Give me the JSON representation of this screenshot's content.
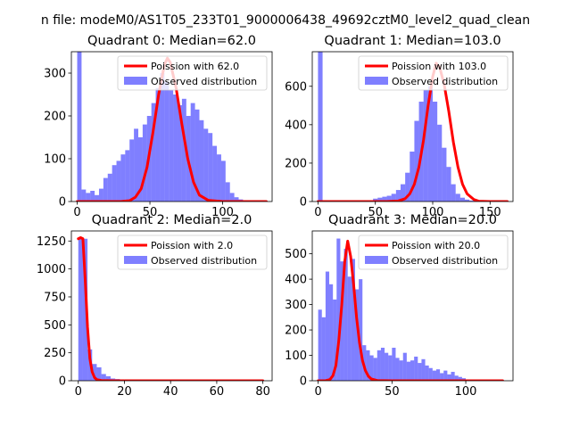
{
  "figure": {
    "suptitle": "n file: modeM0/AS1T05_233T01_9000006438_49692cztM0_level2_quad_clean"
  },
  "colors": {
    "histogram": "#0000ff",
    "poisson": "#ff0000",
    "axis": "#000000"
  },
  "chart_data": [
    {
      "type": "bar+line",
      "title": "Quadrant 0: Median=62.0",
      "xlim": [
        -4,
        134
      ],
      "ylim": [
        0,
        350
      ],
      "xticks": [
        0,
        50,
        100
      ],
      "yticks": [
        0,
        100,
        200,
        300
      ],
      "legend": {
        "position": "top-right",
        "line_label": "Poission with 62.0",
        "hist_label": "Observed distribution"
      },
      "histogram": {
        "bin_start": 0,
        "bin_width": 3,
        "counts": [
          350,
          28,
          20,
          25,
          15,
          30,
          55,
          65,
          85,
          95,
          110,
          120,
          145,
          170,
          150,
          180,
          200,
          230,
          265,
          300,
          280,
          260,
          250,
          225,
          240,
          200,
          230,
          215,
          190,
          170,
          160,
          130,
          110,
          95,
          45,
          20,
          10,
          5,
          3,
          0,
          0,
          0,
          0
        ]
      },
      "poisson": {
        "x": [
          0,
          20,
          30,
          36,
          40,
          44,
          48,
          52,
          56,
          60,
          62,
          64,
          68,
          72,
          76,
          80,
          84,
          90,
          100,
          110,
          120,
          130
        ],
        "y": [
          0,
          0,
          0,
          2,
          10,
          30,
          80,
          160,
          250,
          320,
          335,
          325,
          265,
          180,
          100,
          45,
          15,
          3,
          0,
          0,
          0,
          0
        ]
      }
    },
    {
      "type": "bar+line",
      "title": "Quadrant 1: Median=103.0",
      "xlim": [
        -5,
        170
      ],
      "ylim": [
        0,
        780
      ],
      "xticks": [
        0,
        50,
        100,
        150
      ],
      "yticks": [
        0,
        200,
        400,
        600
      ],
      "legend": {
        "position": "top-right",
        "line_label": "Poission with 103.0",
        "hist_label": "Observed distribution"
      },
      "histogram": {
        "bin_start": 0,
        "bin_width": 4,
        "counts": [
          780,
          0,
          0,
          0,
          0,
          0,
          0,
          0,
          0,
          0,
          0,
          0,
          15,
          20,
          25,
          30,
          40,
          60,
          90,
          150,
          260,
          420,
          520,
          580,
          600,
          520,
          400,
          280,
          180,
          90,
          40,
          20,
          10,
          5,
          3,
          2,
          0,
          0,
          0,
          0,
          0
        ]
      },
      "poisson": {
        "x": [
          0,
          40,
          60,
          70,
          76,
          80,
          84,
          88,
          92,
          96,
          100,
          103,
          106,
          110,
          114,
          118,
          122,
          126,
          130,
          136,
          140,
          150,
          160,
          165
        ],
        "y": [
          0,
          0,
          0,
          3,
          15,
          40,
          90,
          180,
          320,
          500,
          650,
          720,
          700,
          610,
          470,
          310,
          180,
          90,
          40,
          10,
          2,
          0,
          0,
          0
        ]
      }
    },
    {
      "type": "bar+line",
      "title": "Quadrant 2: Median=2.0",
      "xlim": [
        -3,
        84
      ],
      "ylim": [
        0,
        1340
      ],
      "xticks": [
        0,
        20,
        40,
        60,
        80
      ],
      "yticks": [
        0,
        250,
        500,
        750,
        1000,
        1250
      ],
      "legend": {
        "position": "top-right",
        "line_label": "Poission with 2.0",
        "hist_label": "Observed distribution"
      },
      "histogram": {
        "bin_start": 0,
        "bin_width": 2,
        "counts": [
          1280,
          1270,
          280,
          150,
          120,
          60,
          40,
          20,
          15,
          10,
          12,
          8,
          5,
          4,
          3,
          0,
          0,
          0,
          0,
          0,
          0,
          0,
          0,
          0,
          0,
          0,
          0,
          0,
          0,
          0,
          0,
          0,
          0,
          0,
          0,
          0,
          0,
          0,
          0,
          0
        ]
      },
      "poisson": {
        "x": [
          0,
          1,
          2,
          3,
          4,
          5,
          6,
          7,
          8,
          10,
          15,
          20,
          40,
          60,
          80
        ],
        "y": [
          1270,
          1280,
          1270,
          900,
          480,
          200,
          80,
          30,
          10,
          2,
          0,
          0,
          0,
          0,
          0
        ]
      }
    },
    {
      "type": "bar+line",
      "title": "Quadrant 3: Median=20.0",
      "xlim": [
        -4,
        132
      ],
      "ylim": [
        0,
        590
      ],
      "xticks": [
        0,
        50,
        100
      ],
      "yticks": [
        0,
        100,
        200,
        300,
        400,
        500
      ],
      "legend": {
        "position": "top-right",
        "line_label": "Poission with 20.0",
        "hist_label": "Observed distribution"
      },
      "histogram": {
        "bin_start": 0,
        "bin_width": 2.5,
        "counts": [
          280,
          250,
          430,
          380,
          320,
          560,
          470,
          520,
          410,
          480,
          360,
          400,
          140,
          120,
          100,
          90,
          120,
          130,
          110,
          100,
          130,
          90,
          80,
          110,
          75,
          80,
          95,
          70,
          85,
          60,
          50,
          40,
          45,
          30,
          40,
          25,
          35,
          20,
          15,
          10,
          5,
          3,
          2,
          0,
          0,
          0,
          0,
          0,
          0,
          0
        ]
      },
      "poisson": {
        "x": [
          0,
          5,
          8,
          10,
          12,
          14,
          16,
          18,
          20,
          22,
          24,
          26,
          28,
          30,
          32,
          34,
          36,
          40,
          50,
          60,
          80,
          100,
          125
        ],
        "y": [
          0,
          0,
          5,
          20,
          60,
          160,
          300,
          470,
          550,
          490,
          380,
          250,
          150,
          80,
          40,
          18,
          7,
          1,
          0,
          0,
          0,
          0,
          0
        ]
      }
    }
  ]
}
